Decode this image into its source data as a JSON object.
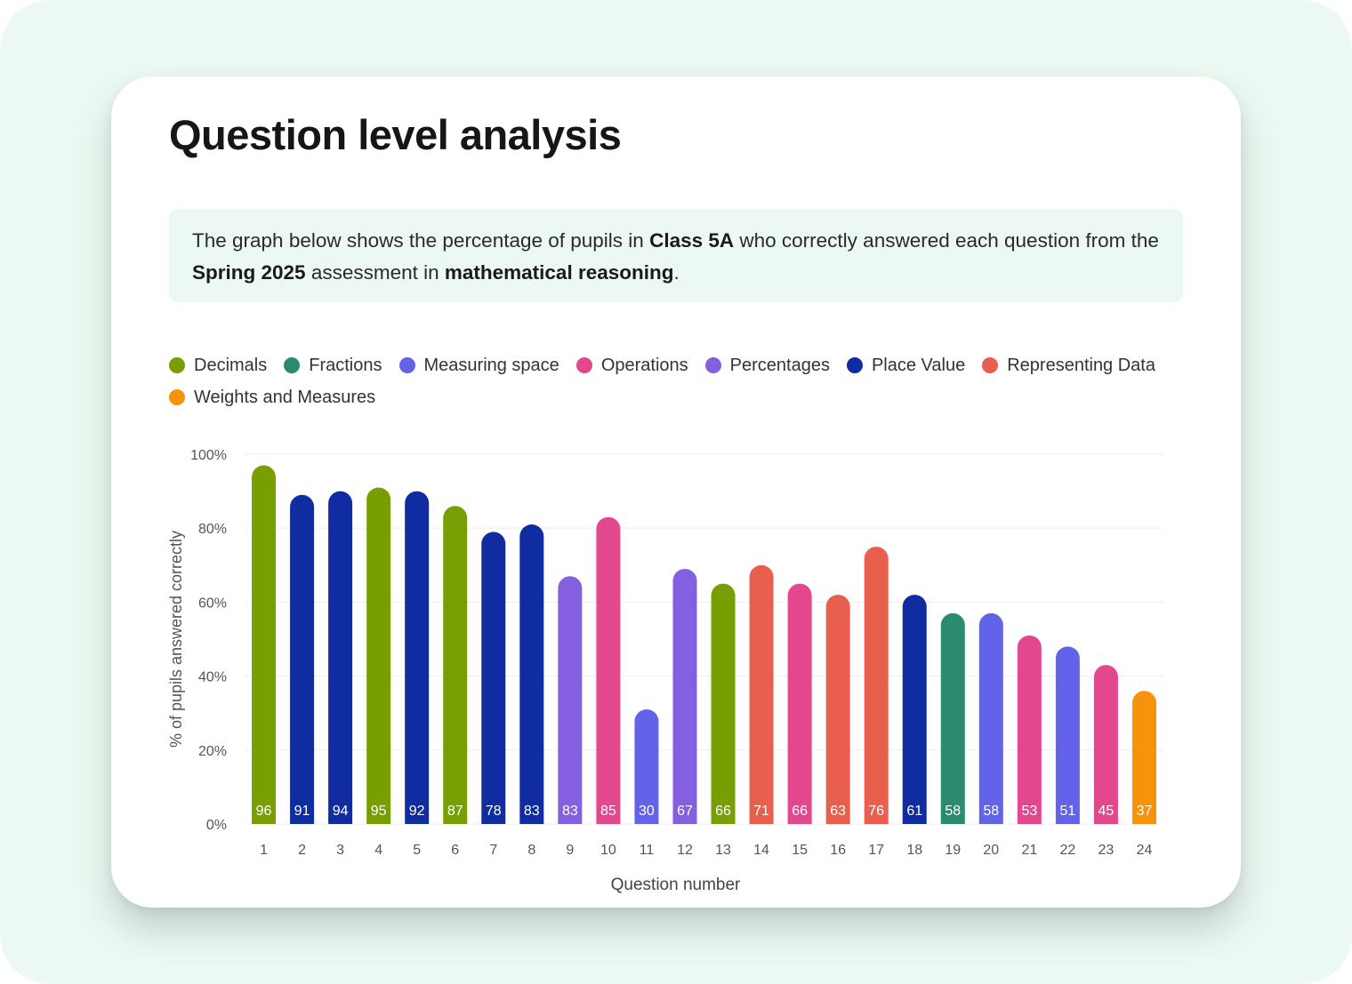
{
  "header": {
    "title": "Question level analysis"
  },
  "intro": {
    "t1": "The graph below shows the percentage of pupils in ",
    "class_name": "Class 5A",
    "t2": " who correctly answered each question from the ",
    "assessment": "Spring 2025",
    "t3": " assessment in ",
    "subject": "mathematical reasoning",
    "t4": "."
  },
  "legend": [
    {
      "label": "Decimals",
      "color": "#789f01"
    },
    {
      "label": "Fractions",
      "color": "#2a8b6e"
    },
    {
      "label": "Measuring space",
      "color": "#6363ea"
    },
    {
      "label": "Operations",
      "color": "#e3488f"
    },
    {
      "label": "Percentages",
      "color": "#845fdf"
    },
    {
      "label": "Place Value",
      "color": "#0f2ca1"
    },
    {
      "label": "Representing Data",
      "color": "#e85f4e"
    },
    {
      "label": "Weights and Measures",
      "color": "#f7930b"
    }
  ],
  "chart_data": {
    "type": "bar",
    "xlabel": "Question number",
    "ylabel": "% of pupils answered correctly",
    "ylim": [
      0,
      100
    ],
    "yticks": [
      0,
      20,
      40,
      60,
      80,
      100
    ],
    "ytick_labels": [
      "0%",
      "20%",
      "40%",
      "60%",
      "80%",
      "100%"
    ],
    "grid": true,
    "legend_position": "top-left",
    "categories": [
      "1",
      "2",
      "3",
      "4",
      "5",
      "6",
      "7",
      "8",
      "9",
      "10",
      "11",
      "12",
      "13",
      "14",
      "15",
      "16",
      "17",
      "18",
      "19",
      "20",
      "21",
      "22",
      "23",
      "24"
    ],
    "values": [
      96,
      91,
      94,
      95,
      92,
      87,
      78,
      83,
      83,
      85,
      30,
      67,
      66,
      71,
      66,
      63,
      76,
      61,
      58,
      58,
      53,
      51,
      45,
      37
    ],
    "visual_heights": [
      97,
      89,
      90,
      91,
      90,
      86,
      79,
      81,
      67,
      83,
      31,
      69,
      65,
      70,
      65,
      62,
      75,
      62,
      57,
      57,
      51,
      48,
      43,
      36
    ],
    "topics": [
      "Decimals",
      "Place Value",
      "Place Value",
      "Decimals",
      "Place Value",
      "Decimals",
      "Place Value",
      "Place Value",
      "Percentages",
      "Operations",
      "Measuring space",
      "Percentages",
      "Decimals",
      "Representing Data",
      "Operations",
      "Representing Data",
      "Representing Data",
      "Place Value",
      "Fractions",
      "Measuring space",
      "Operations",
      "Measuring space",
      "Operations",
      "Weights and Measures"
    ]
  }
}
